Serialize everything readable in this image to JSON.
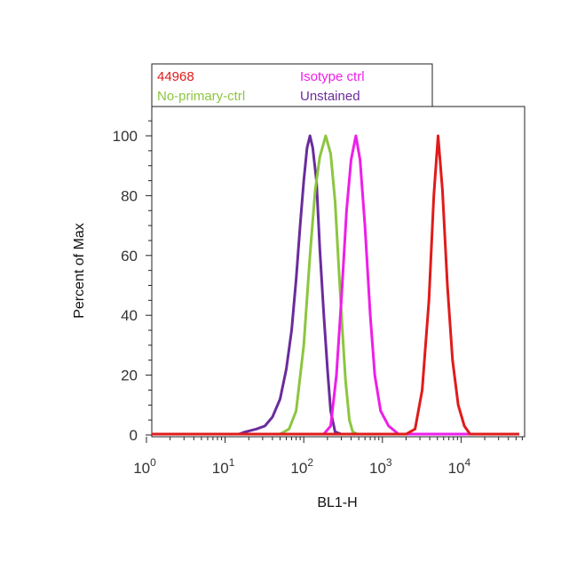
{
  "chart_data": {
    "type": "line",
    "title": "",
    "xlabel": "BL1-H",
    "ylabel": "Percent of Max",
    "x_scale": "log",
    "xlim": [
      1,
      60000
    ],
    "ylim": [
      0,
      110
    ],
    "x_ticks": [
      {
        "value": 1,
        "base": "10",
        "exp": "0"
      },
      {
        "value": 10,
        "base": "10",
        "exp": "1"
      },
      {
        "value": 100,
        "base": "10",
        "exp": "2"
      },
      {
        "value": 1000,
        "base": "10",
        "exp": "3"
      },
      {
        "value": 10000,
        "base": "10",
        "exp": "4"
      }
    ],
    "y_ticks": [
      0,
      20,
      40,
      60,
      80,
      100
    ],
    "grid": false,
    "legend_position": "top",
    "series": [
      {
        "name": "Unstained",
        "color": "#6a2c9c",
        "points": [
          [
            1,
            0.3
          ],
          [
            15,
            0.3
          ],
          [
            18,
            1
          ],
          [
            25,
            2
          ],
          [
            32,
            3
          ],
          [
            40,
            6
          ],
          [
            50,
            12
          ],
          [
            60,
            22
          ],
          [
            70,
            35
          ],
          [
            80,
            52
          ],
          [
            90,
            70
          ],
          [
            100,
            85
          ],
          [
            110,
            96
          ],
          [
            120,
            100
          ],
          [
            130,
            96
          ],
          [
            145,
            85
          ],
          [
            160,
            62
          ],
          [
            180,
            40
          ],
          [
            200,
            22
          ],
          [
            220,
            8
          ],
          [
            250,
            1
          ],
          [
            300,
            0.3
          ],
          [
            60000,
            0.3
          ]
        ]
      },
      {
        "name": "No-primary-ctrl",
        "color": "#8cc63f",
        "points": [
          [
            1,
            0.3
          ],
          [
            50,
            0.3
          ],
          [
            65,
            2
          ],
          [
            80,
            8
          ],
          [
            100,
            30
          ],
          [
            120,
            60
          ],
          [
            140,
            82
          ],
          [
            160,
            93
          ],
          [
            190,
            100
          ],
          [
            220,
            94
          ],
          [
            250,
            78
          ],
          [
            280,
            55
          ],
          [
            310,
            35
          ],
          [
            340,
            18
          ],
          [
            380,
            5
          ],
          [
            420,
            1
          ],
          [
            480,
            0.3
          ],
          [
            60000,
            0.3
          ]
        ]
      },
      {
        "name": "Isotype ctrl",
        "color": "#ee1ee8",
        "points": [
          [
            1,
            0.3
          ],
          [
            180,
            0.3
          ],
          [
            220,
            3
          ],
          [
            260,
            20
          ],
          [
            300,
            45
          ],
          [
            350,
            75
          ],
          [
            400,
            92
          ],
          [
            460,
            100
          ],
          [
            520,
            92
          ],
          [
            600,
            70
          ],
          [
            700,
            40
          ],
          [
            800,
            20
          ],
          [
            950,
            8
          ],
          [
            1200,
            3
          ],
          [
            1600,
            0.3
          ],
          [
            60000,
            0.3
          ]
        ]
      },
      {
        "name": "44968",
        "color": "#e01b1b",
        "points": [
          [
            1,
            0.3
          ],
          [
            2000,
            0.3
          ],
          [
            2600,
            2
          ],
          [
            3200,
            15
          ],
          [
            3900,
            45
          ],
          [
            4500,
            80
          ],
          [
            5100,
            100
          ],
          [
            5800,
            82
          ],
          [
            6700,
            50
          ],
          [
            7800,
            25
          ],
          [
            9200,
            10
          ],
          [
            11000,
            3
          ],
          [
            13000,
            0.3
          ],
          [
            60000,
            0.3
          ]
        ]
      }
    ],
    "legend": [
      {
        "label": "44968",
        "color": "#e01b1b"
      },
      {
        "label": "Isotype ctrl",
        "color": "#ee1ee8"
      },
      {
        "label": "No-primary-ctrl",
        "color": "#8cc63f"
      },
      {
        "label": "Unstained",
        "color": "#6a2c9c"
      }
    ]
  }
}
